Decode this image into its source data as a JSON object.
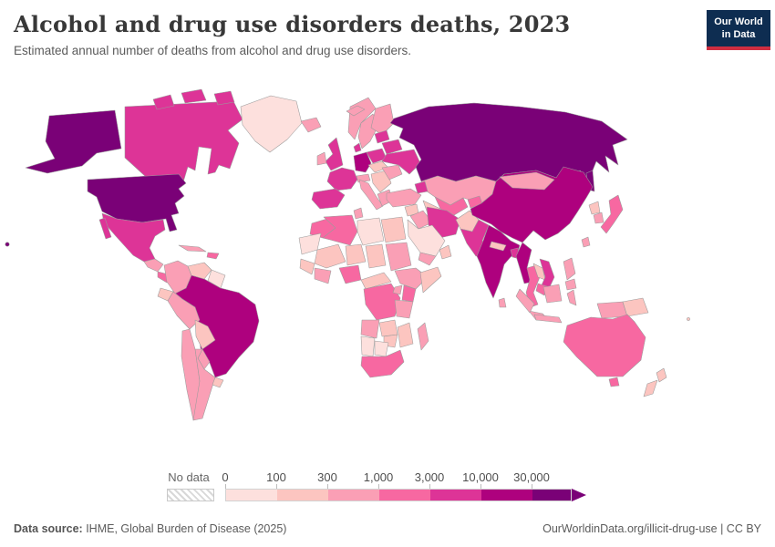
{
  "header": {
    "title": "Alcohol and drug use disorders deaths, 2023",
    "subtitle": "Estimated annual number of deaths from alcohol and drug use disorders.",
    "logo_line1": "Our World",
    "logo_line2": "in Data"
  },
  "colors": {
    "logo_navy": "#0e2d51",
    "logo_red": "#cf2e41",
    "map_border": "#9b9b9b",
    "text_gray": "#5b5b5b"
  },
  "legend": {
    "no_data_label": "No data"
  },
  "footer": {
    "source_label": "Data source:",
    "source_text": " IHME, Global Burden of Disease (2025)",
    "right_text": "OurWorldinData.org/illicit-drug-use | CC BY"
  },
  "chart_data": {
    "type": "choropleth",
    "title": "Alcohol and drug use disorders deaths, 2023",
    "subtitle": "Estimated annual number of deaths from alcohol and drug use disorders.",
    "year": "2023",
    "unit": "deaths",
    "legend_position": "bottom",
    "legend_bins": [
      {
        "label": "0",
        "range": "0-100",
        "color": "#fde0dd"
      },
      {
        "label": "100",
        "range": "100-300",
        "color": "#fcc5c0"
      },
      {
        "label": "300",
        "range": "300-1,000",
        "color": "#fa9fb5"
      },
      {
        "label": "1,000",
        "range": "1,000-3,000",
        "color": "#f768a1"
      },
      {
        "label": "3,000",
        "range": "3,000-10,000",
        "color": "#dd3497"
      },
      {
        "label": "10,000",
        "range": "10,000-30,000",
        "color": "#ae017e"
      },
      {
        "label": "30,000",
        "range": "30,000+",
        "color": "#7a0177"
      }
    ],
    "countries": {
      "United States": 6,
      "Russia": 6,
      "China": 5,
      "India": 5,
      "Brazil": 5,
      "Germany": 5,
      "Myanmar": 5,
      "Canada": 4,
      "Mexico": 4,
      "United Kingdom": 4,
      "France": 4,
      "Spain": 4,
      "Poland": 4,
      "Ukraine": 4,
      "Belarus": 4,
      "Baltic states": 4,
      "Denmark": 4,
      "Iran": 4,
      "Pakistan": 4,
      "Vietnam": 4,
      "Bangladesh": 4,
      "Caucasus states": 4,
      "Australia": 3,
      "Japan": 3,
      "Thailand": 3,
      "Cambodia": 3,
      "Uzbekistan": 3,
      "Kyrgyzstan": 3,
      "Nigeria": 3,
      "Algeria": 3,
      "Morocco": 3,
      "DR Congo": 3,
      "Kenya": 3,
      "South Africa": 3,
      "Panama region": 3,
      "Hispaniola": 3,
      "Iceland": 2,
      "Ireland": 2,
      "Norway": 2,
      "Sweden": 2,
      "Finland": 2,
      "Italy": 2,
      "Switzerland and Austria": 2,
      "Greece": 2,
      "Romania": 2,
      "Turkey": 2,
      "Iraq": 2,
      "Kazakhstan": 2,
      "Mongolia": 2,
      "South Korea": 2,
      "Taiwan": 2,
      "Philippines": 2,
      "Indonesia": 2,
      "Malaysia": 2,
      "Sri Lanka": 2,
      "Colombia": 2,
      "Peru": 2,
      "Chile": 2,
      "Argentina": 2,
      "Paraguay": 2,
      "Cuba": 2,
      "Central America": 2,
      "Ghana coast": 2,
      "Ethiopia": 2,
      "Sudan": 2,
      "Tanzania": 2,
      "Uganda": 2,
      "Angola": 2,
      "Madagascar": 2,
      "Tunisia": 2,
      "Yemen": 2,
      "Venezuela": 1,
      "Ecuador": 1,
      "Bolivia": 1,
      "Uruguay": 1,
      "New Zealand": 1,
      "Papua New Guinea": 1,
      "North Korea": 1,
      "Nepal": 1,
      "Afghanistan": 1,
      "Turkmenistan": 1,
      "Syria": 1,
      "Oman": 1,
      "Egypt": 1,
      "Mali": 1,
      "Niger": 1,
      "Chad": 1,
      "Somalia": 1,
      "West Africa": 1,
      "Cameroon and Central Africa": 1,
      "Zambia": 1,
      "Mozambique": 1,
      "Zimbabwe": 1,
      "Balkans": 1,
      "Czechia and Hungary": 1,
      "Laos": 1,
      "Fiji": 1,
      "Greenland": 0,
      "Libya": 0,
      "Saudi Arabia": 0,
      "Mauritania": 0,
      "Namibia": 0,
      "Botswana": 0,
      "Guyanas": 0
    }
  }
}
